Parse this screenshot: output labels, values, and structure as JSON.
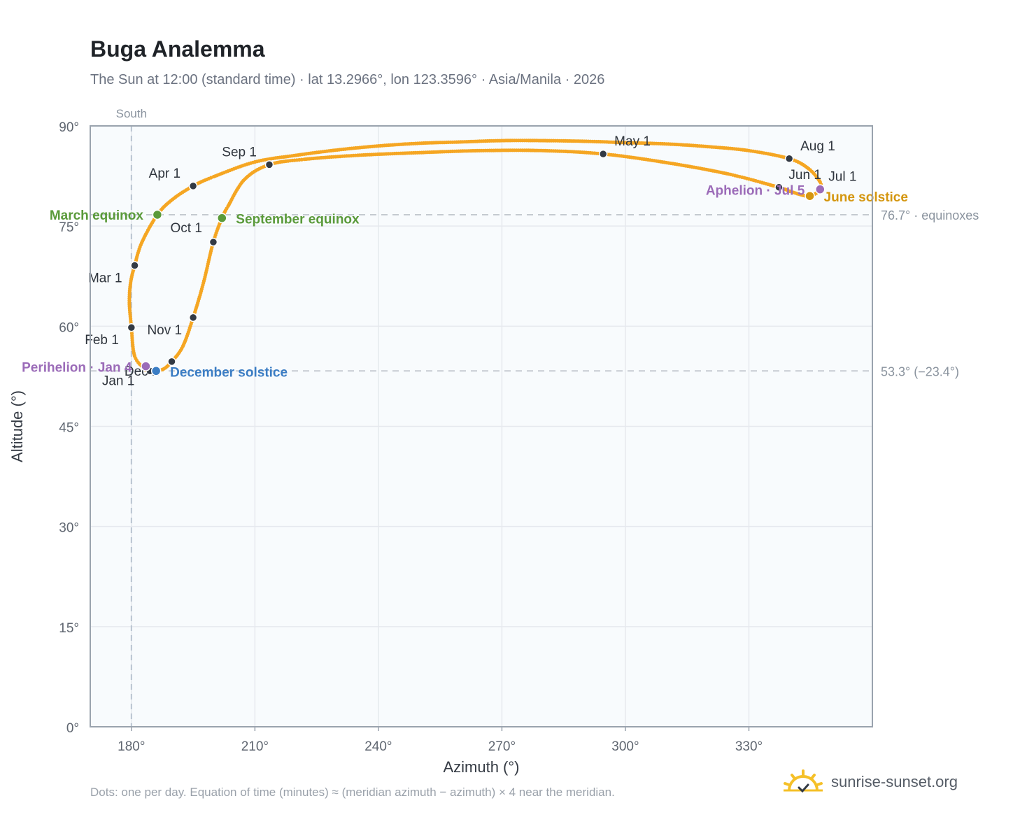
{
  "title": "Buga Analemma",
  "subtitle": "The Sun at 12:00 (standard time) · lat 13.2966°, lon 123.3596° · Asia/Manila · 2026",
  "footnote": "Dots: one per day. Equation of time (minutes) ≈ (meridian azimuth − azimuth) × 4 near the meridian.",
  "brand": {
    "name": "sunrise-sunset.org",
    "icon": "sun-logo-icon"
  },
  "colors": {
    "curve": "#f5a623",
    "month": "#333a44",
    "equinox": "#5a9a3a",
    "solstice_dec": "#3b7dc4",
    "solstice_jun": "#d4960f",
    "apsis": "#9b6bb8",
    "grid": "#e6e9ee",
    "frame": "#9aa3ae",
    "plot_bg": "#f8fbfd"
  },
  "chart_data": {
    "type": "scatter",
    "xlabel": "Azimuth (°)",
    "ylabel": "Altitude (°)",
    "xlim": [
      170,
      360
    ],
    "ylim": [
      0,
      90
    ],
    "x_ticks": [
      180,
      210,
      240,
      270,
      300,
      330
    ],
    "x_tick_labels": [
      "180°",
      "210°",
      "240°",
      "270°",
      "300°",
      "330°"
    ],
    "y_ticks": [
      0,
      15,
      30,
      45,
      60,
      75,
      90
    ],
    "y_tick_labels": [
      "0°",
      "15°",
      "30°",
      "45°",
      "60°",
      "75°",
      "90°"
    ],
    "grid": true,
    "meridian": {
      "x": 180,
      "label": "South"
    },
    "reference_lines": [
      {
        "y": 76.7,
        "label": "76.7° · equinoxes"
      },
      {
        "y": 53.3,
        "label": "53.3° (−23.4°)"
      }
    ],
    "month_markers": [
      {
        "label": "Jan 1",
        "az": 184.5,
        "alt": 53.3
      },
      {
        "label": "Feb 1",
        "az": 180.0,
        "alt": 59.8
      },
      {
        "label": "Mar 1",
        "az": 180.8,
        "alt": 69.1
      },
      {
        "label": "Apr 1",
        "az": 195.0,
        "alt": 81.0
      },
      {
        "label": "May 1",
        "az": 294.6,
        "alt": 85.8
      },
      {
        "label": "Jun 1",
        "az": 337.3,
        "alt": 80.8
      },
      {
        "label": "Jul 1",
        "az": 347.3,
        "alt": 80.5
      },
      {
        "label": "Aug 1",
        "az": 339.8,
        "alt": 85.1
      },
      {
        "label": "Sep 1",
        "az": 213.5,
        "alt": 84.2
      },
      {
        "label": "Oct 1",
        "az": 199.9,
        "alt": 72.6
      },
      {
        "label": "Nov 1",
        "az": 195.0,
        "alt": 61.3
      },
      {
        "label": "Dec 1",
        "az": 189.8,
        "alt": 54.7
      }
    ],
    "events": [
      {
        "label": "March equinox",
        "kind": "equinox",
        "az": 186.3,
        "alt": 76.7
      },
      {
        "label": "September equinox",
        "kind": "equinox",
        "az": 202.0,
        "alt": 76.2
      },
      {
        "label": "December solstice",
        "kind": "solstice_dec",
        "az": 186.0,
        "alt": 53.3
      },
      {
        "label": "June solstice",
        "kind": "solstice_jun",
        "az": 344.8,
        "alt": 79.5
      },
      {
        "label": "Perihelion · Jan 4",
        "kind": "apsis",
        "az": 183.5,
        "alt": 54.0
      },
      {
        "label": "Aphelion · Jul 5",
        "kind": "apsis",
        "az": 347.3,
        "alt": 80.5
      }
    ],
    "curve_path": [
      [
        183.5,
        53.4
      ],
      [
        180.8,
        55.5
      ],
      [
        180.0,
        59.8
      ],
      [
        179.5,
        63.5
      ],
      [
        179.8,
        66.5
      ],
      [
        180.8,
        69.1
      ],
      [
        182.5,
        72.5
      ],
      [
        186.3,
        76.7
      ],
      [
        190.0,
        79.0
      ],
      [
        195.0,
        81.0
      ],
      [
        200.0,
        82.4
      ],
      [
        210.0,
        84.6
      ],
      [
        220.0,
        85.6
      ],
      [
        230.0,
        86.4
      ],
      [
        240.0,
        87.0
      ],
      [
        250.0,
        87.4
      ],
      [
        260.0,
        87.6
      ],
      [
        270.0,
        87.8
      ],
      [
        280.0,
        87.8
      ],
      [
        290.0,
        87.7
      ],
      [
        300.0,
        87.5
      ],
      [
        310.0,
        87.3
      ],
      [
        320.0,
        86.9
      ],
      [
        330.0,
        86.3
      ],
      [
        339.8,
        85.1
      ],
      [
        344.5,
        83.6
      ],
      [
        347.3,
        81.6
      ],
      [
        347.3,
        80.5
      ],
      [
        346.0,
        79.8
      ],
      [
        344.0,
        79.5
      ],
      [
        340.0,
        80.2
      ],
      [
        337.3,
        80.8
      ],
      [
        325.0,
        82.8
      ],
      [
        310.0,
        84.5
      ],
      [
        294.6,
        85.8
      ],
      [
        280.0,
        86.3
      ],
      [
        265.0,
        86.3
      ],
      [
        250.0,
        86.0
      ],
      [
        235.0,
        85.6
      ],
      [
        222.0,
        85.0
      ],
      [
        213.5,
        84.2
      ],
      [
        207.5,
        82.0
      ],
      [
        203.5,
        78.0
      ],
      [
        202.0,
        76.2
      ],
      [
        199.9,
        72.6
      ],
      [
        197.5,
        66.5
      ],
      [
        195.0,
        61.3
      ],
      [
        192.5,
        57.0
      ],
      [
        189.8,
        54.7
      ],
      [
        187.5,
        53.5
      ],
      [
        185.0,
        53.5
      ],
      [
        183.5,
        53.4
      ]
    ]
  }
}
